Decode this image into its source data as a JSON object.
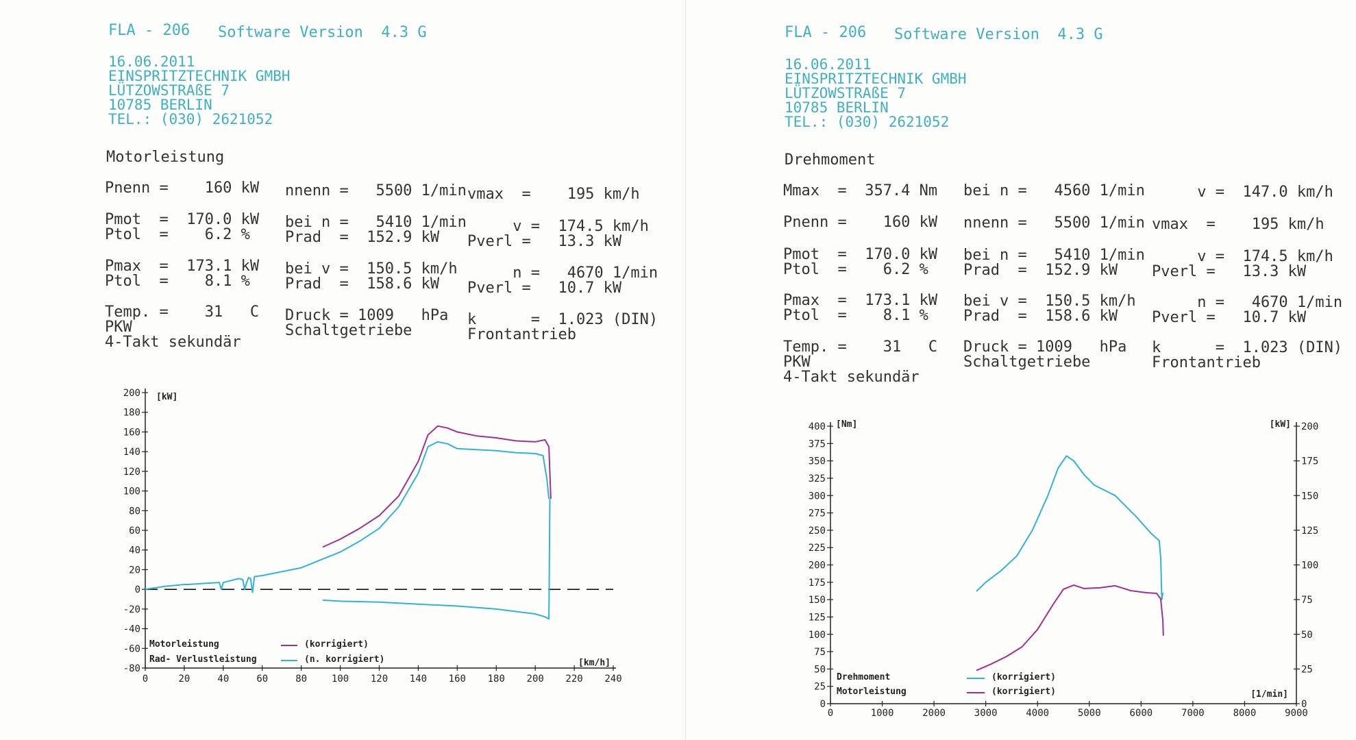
{
  "left": {
    "header": {
      "model": "FLA - 206",
      "software": "Software Version  4.3 G"
    },
    "address": [
      "16.06.2011",
      "EINSPRITZTECHNIK GMBH",
      "LÜTZOWSTRAßE 7",
      "10785 BERLIN",
      "TEL.: (030) 2621052"
    ],
    "title": "Motorleistung",
    "params": {
      "pnenn": "Pnenn =    160 kW",
      "nnenn": "nnenn =   5500 1/min",
      "vmax": "vmax  =    195 km/h",
      "pmot": "Pmot  =  170.0 kW",
      "ptol1": "Ptol  =    6.2 %",
      "bein1": "bei n =   5410 1/min",
      "prad1": "Prad  =  152.9 kW",
      "v1": "     v =  174.5 km/h",
      "pverl1": "Pverl =   13.3 kW",
      "pmax": "Pmax  =  173.1 kW",
      "ptol2": "Ptol  =    8.1 %",
      "beiv": "bei v =  150.5 km/h",
      "prad2": "Prad  =  158.6 kW",
      "n2": "     n =   4670 1/min",
      "pverl2": "Pverl =   10.7 kW",
      "temp": "Temp. =    31   C",
      "pkw": "PKW",
      "takt": "4-Takt sekundär",
      "druck": "Druck = 1009   hPa",
      "getriebe": "Schaltgetriebe",
      "k": "k      =  1.023 (DIN)",
      "antrieb": "Frontantrieb"
    }
  },
  "right": {
    "header": {
      "model": "FLA - 206",
      "software": "Software Version  4.3 G"
    },
    "address": [
      "16.06.2011",
      "EINSPRITZTECHNIK GMBH",
      "LÜTZOWSTRAßE 7",
      "10785 BERLIN",
      "TEL.: (030) 2621052"
    ],
    "title": "Drehmoment",
    "params": {
      "mmax": "Mmax  =  357.4 Nm",
      "bein0": "bei n =   4560 1/min",
      "v0": "     v =  147.0 km/h",
      "pnenn": "Pnenn =    160 kW",
      "nnenn": "nnenn =   5500 1/min",
      "vmax": "vmax  =    195 km/h",
      "pmot": "Pmot  =  170.0 kW",
      "ptol1": "Ptol  =    6.2 %",
      "bein1": "bei n =   5410 1/min",
      "prad1": "Prad  =  152.9 kW",
      "v1": "     v =  174.5 km/h",
      "pverl1": "Pverl =   13.3 kW",
      "pmax": "Pmax  =  173.1 kW",
      "ptol2": "Ptol  =    8.1 %",
      "beiv": "bei v =  150.5 km/h",
      "prad2": "Prad  =  158.6 kW",
      "n2": "     n =   4670 1/min",
      "pverl2": "Pverl =   10.7 kW",
      "temp": "Temp. =    31   C",
      "pkw": "PKW",
      "takt": "4-Takt sekundär",
      "druck": "Druck = 1009   hPa",
      "getriebe": "Schaltgetriebe",
      "k": "k      =  1.023 (DIN)",
      "antrieb": "Frontantrieb"
    }
  },
  "chart_data": [
    {
      "type": "line",
      "ylabel": "[kW]",
      "xlabel": "[km/h]",
      "xlim": [
        0,
        240
      ],
      "ylim": [
        -80,
        200
      ],
      "xticks": [
        0,
        20,
        40,
        60,
        80,
        100,
        120,
        140,
        160,
        180,
        200,
        220,
        240
      ],
      "yticks": [
        200,
        180,
        160,
        140,
        120,
        100,
        80,
        60,
        40,
        20,
        0,
        -20,
        -40,
        -60,
        -80
      ],
      "legend_position": "bottom-left",
      "colors": {
        "korr": "#a0308f",
        "nkorr": "#2fb3d6",
        "zero": "#111111"
      },
      "legend": [
        {
          "label": "Motorleistung",
          "line": "(korrigiert)",
          "color": "#a0308f"
        },
        {
          "label": "Rad- Verlustleistung",
          "line": "(n. korrigiert)",
          "color": "#2fb3d6"
        }
      ],
      "series": [
        {
          "color": "#a0308f",
          "x": [
            91,
            100,
            110,
            120,
            130,
            140,
            145,
            150,
            155,
            160,
            170,
            180,
            190,
            200,
            205,
            207,
            208
          ],
          "y": [
            43,
            51,
            62,
            75,
            95,
            130,
            157,
            166,
            164,
            160,
            156,
            154,
            151,
            150,
            152,
            145,
            92
          ]
        },
        {
          "color": "#2fb3d6",
          "x": [
            0,
            10,
            20,
            22,
            30,
            38,
            39,
            40,
            42,
            48,
            50,
            51,
            52,
            53,
            54,
            55,
            56,
            60,
            70,
            80,
            90,
            100,
            110,
            120,
            130,
            140,
            145,
            150,
            155,
            160,
            170,
            180,
            190,
            200,
            204,
            206,
            207
          ],
          "y": [
            0,
            3,
            5,
            5,
            6,
            7,
            0,
            7,
            8,
            11,
            10,
            0,
            7,
            12,
            11,
            -3,
            13,
            14,
            18,
            22,
            30,
            38,
            49,
            62,
            84,
            118,
            145,
            150,
            148,
            143,
            142,
            141,
            139,
            138,
            136,
            112,
            92
          ]
        },
        {
          "color": "#2fb3d6",
          "x": [
            91,
            100,
            120,
            140,
            160,
            180,
            200,
            205,
            207,
            207.5
          ],
          "y": [
            -11,
            -12,
            -13,
            -15,
            -17,
            -20,
            -25,
            -28,
            -30,
            92
          ]
        }
      ]
    },
    {
      "type": "line",
      "ylabel": "[Nm]",
      "y2label": "[kW]",
      "xlabel": "[1/min]",
      "xlim": [
        0,
        9000
      ],
      "ylim": [
        0,
        400
      ],
      "y2lim": [
        0,
        200
      ],
      "xticks": [
        0,
        1000,
        2000,
        3000,
        4000,
        5000,
        6000,
        7000,
        8000,
        9000
      ],
      "yticks": [
        400,
        375,
        350,
        325,
        300,
        275,
        250,
        225,
        200,
        175,
        150,
        125,
        100,
        75,
        50,
        25,
        0
      ],
      "y2ticks": [
        200,
        175,
        150,
        125,
        100,
        75,
        50,
        25,
        0
      ],
      "legend_position": "bottom-left",
      "legend": [
        {
          "label": "Drehmoment",
          "line": "(korrigiert)",
          "color": "#2fb3d6"
        },
        {
          "label": "Motorleistung",
          "line": "(korrigiert)",
          "color": "#a0308f"
        }
      ],
      "series": [
        {
          "color": "#2fb3d6",
          "x": [
            2820,
            3000,
            3300,
            3600,
            3900,
            4200,
            4400,
            4560,
            4700,
            4900,
            5100,
            5500,
            5900,
            6200,
            6350,
            6380,
            6400,
            6420
          ],
          "y": [
            162,
            175,
            192,
            213,
            250,
            300,
            340,
            357,
            350,
            330,
            315,
            300,
            270,
            245,
            235,
            210,
            150,
            160
          ]
        },
        {
          "color": "#a0308f",
          "x": [
            2820,
            3100,
            3400,
            3700,
            4000,
            4300,
            4500,
            4700,
            4900,
            5200,
            5500,
            5800,
            6100,
            6300,
            6380,
            6420,
            6430
          ],
          "y": [
            48,
            57,
            68,
            82,
            107,
            143,
            165,
            171,
            166,
            167,
            170,
            163,
            160,
            159,
            151,
            120,
            98
          ]
        }
      ]
    }
  ]
}
